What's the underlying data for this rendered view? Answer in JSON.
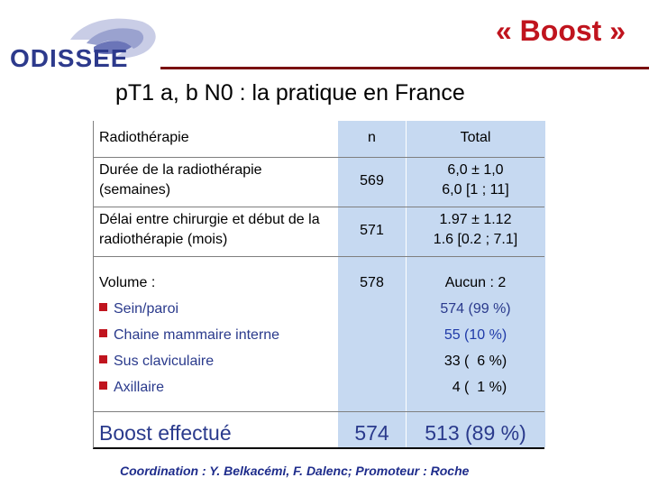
{
  "header": {
    "logo_text": "ODISSEE",
    "title": "« Boost »",
    "subtitle": "pT1 a, b N0 : la pratique en France"
  },
  "table": {
    "header": {
      "label": "Radiothérapie",
      "n": "n",
      "total": "Total"
    },
    "rows": [
      {
        "label": "Durée de la radiothérapie (semaines)",
        "n": "569",
        "total_line1": "6,0 ± 1,0",
        "total_line2": "6,0 [1 ; 11]"
      },
      {
        "label": "Délai entre chirurgie et début de la radiothérapie (mois)",
        "n": "571",
        "total_line1": "1.97 ± 1.12",
        "total_line2": "1.6 [0.2 ; 7.1]"
      }
    ],
    "volume": {
      "label": "Volume :",
      "n": "578",
      "total_head": "Aucun : 2",
      "items": [
        {
          "label": "Sein/paroi",
          "value": "574 (99 %)"
        },
        {
          "label": "Chaine mammaire interne",
          "value": "55 (10 %)"
        },
        {
          "label": "Sus claviculaire",
          "value": "33 (  6 %)"
        },
        {
          "label": "Axillaire",
          "value": "  4 (  1 %)"
        }
      ]
    },
    "boost": {
      "label": "Boost effectué",
      "n": "574",
      "total": "513 (89 %)"
    }
  },
  "footer": {
    "text": "Coordination : Y. Belkacémi, F. Dalenc; Promoteur : Roche"
  },
  "colors": {
    "title": "#c0141e",
    "column_fill": "#c6d9f1",
    "text_blue": "#2a3a8c",
    "footer": "#1f2d8c"
  }
}
